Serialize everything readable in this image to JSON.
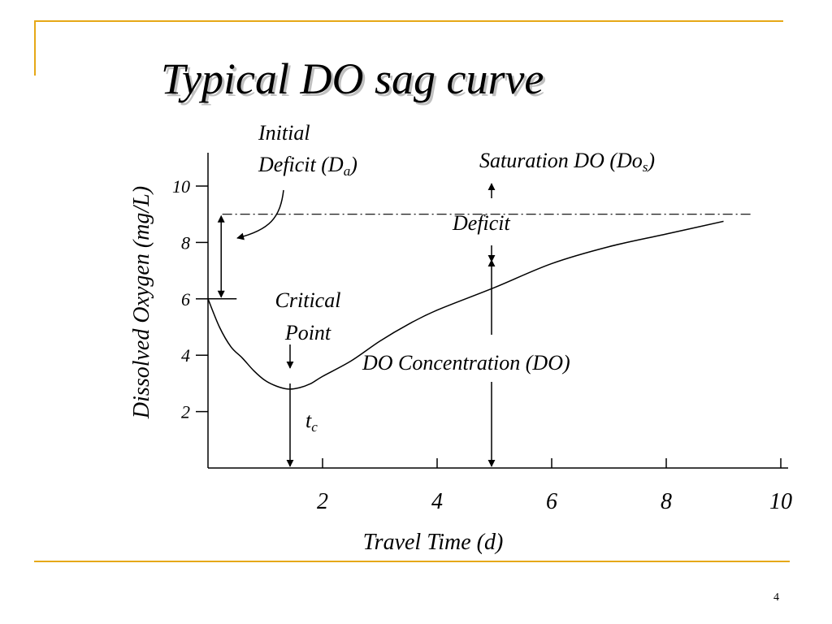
{
  "slide": {
    "title": "Typical DO sag curve",
    "page_number": "4",
    "accent_color": "#e6a817"
  },
  "chart_data": {
    "type": "line",
    "title": "Typical DO sag curve",
    "xlabel": "Travel Time (d)",
    "ylabel": "Dissolved Oxygen (mg/L)",
    "xlim": [
      0,
      10
    ],
    "ylim": [
      0,
      10
    ],
    "x_ticks": [
      2,
      4,
      6,
      8,
      10
    ],
    "y_ticks": [
      2,
      4,
      6,
      8,
      10
    ],
    "grid": false,
    "saturation_do": 9.0,
    "series": [
      {
        "x": [
          0,
          0.2,
          0.4,
          0.6,
          0.8,
          1.0,
          1.2,
          1.4,
          1.6,
          1.8,
          2.0,
          2.5,
          3.0,
          3.5,
          4.0,
          5.0,
          6.0,
          7.0,
          8.0,
          9.0
        ],
        "y": [
          6.0,
          5.0,
          4.3,
          3.9,
          3.45,
          3.1,
          2.9,
          2.8,
          2.85,
          3.0,
          3.25,
          3.8,
          4.5,
          5.1,
          5.6,
          6.4,
          7.25,
          7.85,
          8.3,
          8.75
        ]
      }
    ],
    "annotations": {
      "initial_deficit": {
        "line1": "Initial",
        "line2": "Deficit (D",
        "sub": "a",
        "close": ")"
      },
      "saturation": {
        "text": "Saturation DO (Do",
        "sub": "s",
        "close": ")"
      },
      "deficit": {
        "text": "Deficit"
      },
      "critical_point": {
        "line1": "Critical",
        "line2": "Point"
      },
      "do_concentration": {
        "text": "DO Concentration (DO)"
      },
      "critical_time": {
        "text": "t",
        "sub": "c"
      }
    }
  }
}
